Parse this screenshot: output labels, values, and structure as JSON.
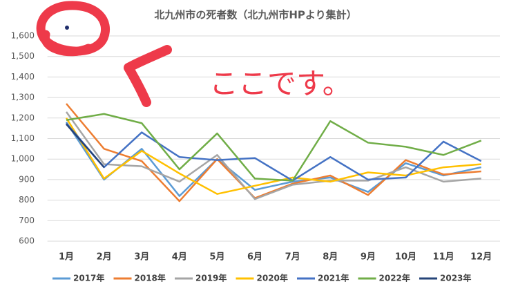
{
  "chart_data": {
    "type": "line",
    "title": "北九州市の死者数（北九州市HPより集計）",
    "annotation": "ここです。",
    "categories": [
      "1月",
      "2月",
      "3月",
      "4月",
      "5月",
      "6月",
      "7月",
      "8月",
      "9月",
      "10月",
      "11月",
      "12月"
    ],
    "ylim": [
      600,
      1600
    ],
    "yticks": [
      {
        "value": 600,
        "label": "600"
      },
      {
        "value": 700,
        "label": "700"
      },
      {
        "value": 800,
        "label": "800"
      },
      {
        "value": 900,
        "label": "900"
      },
      {
        "value": 1000,
        "label": "1,000"
      },
      {
        "value": 1100,
        "label": "1,100"
      },
      {
        "value": 1200,
        "label": "1,200"
      },
      {
        "value": 1300,
        "label": "1,300"
      },
      {
        "value": 1400,
        "label": "1,400"
      },
      {
        "value": 1500,
        "label": "1,500"
      },
      {
        "value": 1600,
        "label": "1,600"
      }
    ],
    "grid": true,
    "legend": "bottom",
    "series": [
      {
        "name": "2017年",
        "color": "#5b9bd5",
        "values": [
          1180,
          900,
          1050,
          820,
          1000,
          850,
          890,
          910,
          840,
          980,
          920,
          960
        ]
      },
      {
        "name": "2018年",
        "color": "#ed7d31",
        "values": [
          1270,
          1050,
          990,
          795,
          1000,
          810,
          880,
          920,
          825,
          995,
          925,
          940
        ]
      },
      {
        "name": "2019年",
        "color": "#a5a5a5",
        "values": [
          1230,
          975,
          965,
          890,
          1020,
          805,
          875,
          895,
          895,
          960,
          890,
          905
        ]
      },
      {
        "name": "2020年",
        "color": "#ffc000",
        "values": [
          1200,
          905,
          1040,
          930,
          830,
          870,
          910,
          890,
          935,
          920,
          960,
          975
        ]
      },
      {
        "name": "2021年",
        "color": "#4472c4",
        "values": [
          1175,
          960,
          1130,
          1010,
          995,
          1005,
          895,
          1010,
          900,
          910,
          1085,
          990
        ]
      },
      {
        "name": "2022年",
        "color": "#70ad47",
        "values": [
          1190,
          1220,
          1175,
          950,
          1125,
          905,
          895,
          1185,
          1080,
          1060,
          1020,
          1090
        ]
      },
      {
        "name": "2023年",
        "color": "#264478",
        "values": [
          1170,
          960,
          null,
          null,
          null,
          null,
          null,
          null,
          null,
          null,
          null,
          null
        ]
      }
    ]
  }
}
